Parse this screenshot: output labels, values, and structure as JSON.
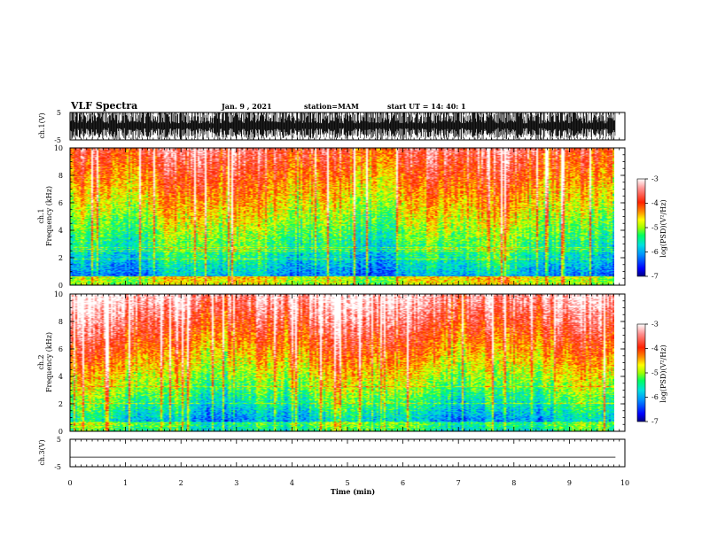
{
  "header": {
    "title": "VLF Spectra",
    "date": "Jan. 9 , 2021",
    "station": "station=MAM",
    "start_ut": "start UT =  14: 40: 1"
  },
  "chart_data": [
    {
      "type": "line",
      "panel": "ch1-waveform",
      "ylabel": "ch.1(V)",
      "ylim": [
        -5,
        5
      ],
      "yticks": [
        "5",
        "-5"
      ],
      "xlim": [
        0,
        10
      ],
      "description_of_signal": "dense impulsive sferics spanning full amplitude range"
    },
    {
      "type": "heatmap",
      "panel": "ch1-spectrogram",
      "ylabel": "ch.1\nFrequency  (kHz)",
      "ylabel_line1": "ch.1",
      "ylabel_line2": "Frequency  (kHz)",
      "ylim": [
        0,
        10
      ],
      "yticks": [
        "0",
        "2",
        "4",
        "6",
        "8",
        "10"
      ],
      "xlim": [
        0,
        9.83
      ],
      "colorbar": {
        "label": "log(PSD)(V²/Hz)",
        "range": [
          -7,
          -3
        ],
        "ticks": [
          "-3",
          "-4",
          "-5",
          "-6",
          "-7"
        ]
      },
      "colormap": [
        "#000080",
        "#0000ff",
        "#0090ff",
        "#00e0e0",
        "#00ff60",
        "#a0ff00",
        "#ffff00",
        "#ff9000",
        "#ff2000",
        "#ff9090",
        "#ffffff"
      ]
    },
    {
      "type": "heatmap",
      "panel": "ch2-spectrogram",
      "ylabel_line1": "ch.2",
      "ylabel_line2": "Frequency  (kHz)",
      "ylim": [
        0,
        10
      ],
      "yticks": [
        "0",
        "2",
        "4",
        "6",
        "8",
        "10"
      ],
      "xlim": [
        0,
        9.83
      ],
      "colorbar": {
        "label": "log(PSD)(V²/Hz)",
        "range": [
          -7,
          -3
        ],
        "ticks": [
          "-3",
          "-4",
          "-5",
          "-6",
          "-7"
        ]
      }
    },
    {
      "type": "line",
      "panel": "ch3-waveform",
      "ylabel": "ch.3(V)",
      "ylim": [
        -5,
        5
      ],
      "yticks": [
        "5",
        "-5"
      ],
      "xlim": [
        0,
        10
      ],
      "x": [
        0,
        9.83
      ],
      "y": [
        -1.5,
        -1.5
      ],
      "xlabel": "Time  (min)",
      "xticks": [
        "0",
        "1",
        "2",
        "3",
        "4",
        "5",
        "6",
        "7",
        "8",
        "9",
        "10"
      ]
    }
  ]
}
